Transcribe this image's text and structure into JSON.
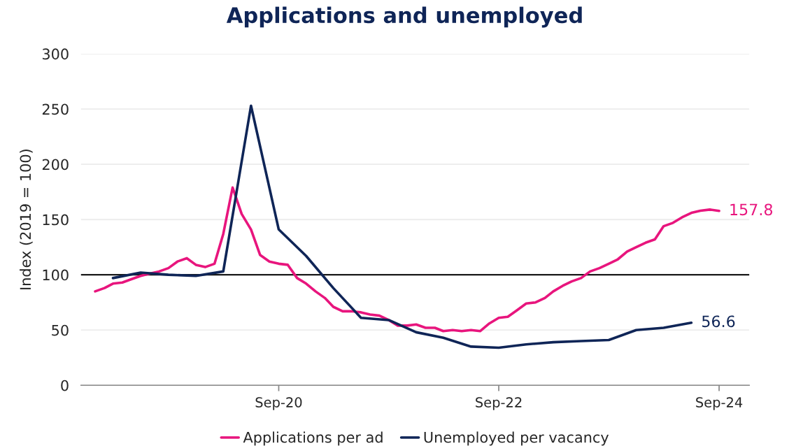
{
  "chart_data": {
    "type": "line",
    "title": "Applications and unemployed",
    "ylabel": "Index (2019 = 100)",
    "xlim": [
      "2018-11-15",
      "2024-12-10"
    ],
    "ylim": [
      0,
      300
    ],
    "yticks": [
      0,
      50,
      100,
      150,
      200,
      250,
      300
    ],
    "xticks": [
      {
        "value": "2020-09",
        "label": "Sep-20"
      },
      {
        "value": "2022-09",
        "label": "Sep-22"
      },
      {
        "value": "2024-09",
        "label": "Sep-24"
      }
    ],
    "grid": "y",
    "legend": "bottom",
    "line_style": "solid",
    "marker": "none",
    "ref_lines": [
      {
        "axis": "y",
        "value": 100,
        "label": null,
        "color": "#1a1a1a"
      }
    ],
    "series": [
      {
        "name": "Applications per ad",
        "color": "#e8157d",
        "x": [
          "2019-01",
          "2019-02",
          "2019-03",
          "2019-04",
          "2019-05",
          "2019-06",
          "2019-07",
          "2019-08",
          "2019-09",
          "2019-10",
          "2019-11",
          "2019-12",
          "2020-01",
          "2020-02",
          "2020-03",
          "2020-04",
          "2020-05",
          "2020-06",
          "2020-07",
          "2020-08",
          "2020-09",
          "2020-10",
          "2020-11",
          "2020-12",
          "2021-01",
          "2021-02",
          "2021-03",
          "2021-04",
          "2021-05",
          "2021-06",
          "2021-07",
          "2021-08",
          "2021-09",
          "2021-10",
          "2021-11",
          "2021-12",
          "2022-01",
          "2022-02",
          "2022-03",
          "2022-04",
          "2022-05",
          "2022-06",
          "2022-07",
          "2022-08",
          "2022-09",
          "2022-10",
          "2022-11",
          "2022-12",
          "2023-01",
          "2023-02",
          "2023-03",
          "2023-04",
          "2023-05",
          "2023-06",
          "2023-07",
          "2023-08",
          "2023-09",
          "2023-10",
          "2023-11",
          "2023-12",
          "2024-01",
          "2024-02",
          "2024-03",
          "2024-04",
          "2024-05",
          "2024-06",
          "2024-07",
          "2024-08",
          "2024-09"
        ],
        "values": [
          85,
          88,
          92,
          93,
          96,
          99,
          101,
          103,
          106,
          112,
          115,
          109,
          107,
          110,
          137,
          179,
          155,
          141,
          118,
          112,
          110,
          109,
          97,
          92,
          85,
          79,
          71,
          67,
          67,
          66,
          64,
          63,
          59,
          54,
          54,
          55,
          52,
          52,
          49,
          50,
          49,
          50,
          49,
          56,
          61,
          62,
          68,
          74,
          75,
          79,
          85,
          90,
          94,
          97,
          103,
          106,
          110,
          114,
          121,
          125,
          129,
          132,
          144,
          147,
          152,
          156,
          158,
          159,
          157.8
        ]
      },
      {
        "name": "Unemployed per vacancy",
        "color": "#0f2557",
        "x": [
          "2019-03",
          "2019-06",
          "2019-09",
          "2019-12",
          "2020-03",
          "2020-06",
          "2020-09",
          "2020-12",
          "2021-03",
          "2021-06",
          "2021-09",
          "2021-12",
          "2022-03",
          "2022-06",
          "2022-09",
          "2022-12",
          "2023-03",
          "2023-06",
          "2023-09",
          "2023-12",
          "2024-03",
          "2024-06"
        ],
        "values": [
          97,
          102,
          100,
          99,
          103,
          253,
          141,
          117,
          88,
          61,
          59,
          48,
          43,
          35,
          34,
          37,
          39,
          40,
          41,
          50,
          52,
          56.6
        ]
      }
    ],
    "annotations": [
      {
        "text": "157.8",
        "x": "2024-09",
        "y": 157.8
      },
      {
        "text": "56.6",
        "x": "2024-06",
        "y": 56.6
      }
    ]
  }
}
